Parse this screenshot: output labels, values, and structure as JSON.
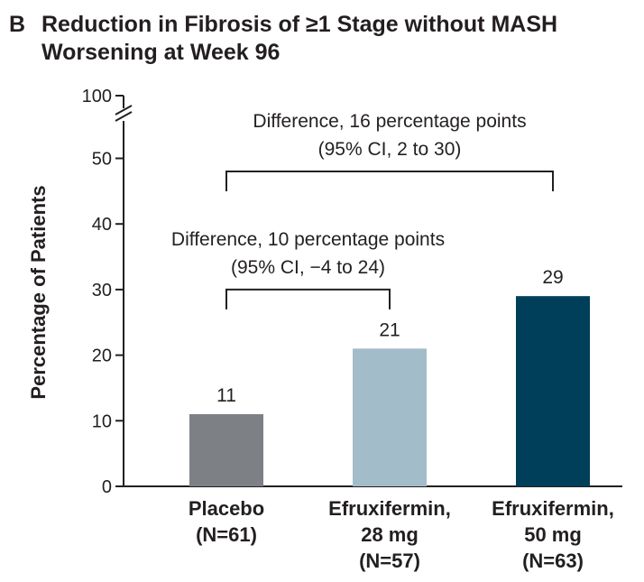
{
  "figure": {
    "panel_letter": "B",
    "title_line1": "Reduction in Fibrosis of ≥1 Stage without MASH",
    "title_line2": "Worsening at Week 96"
  },
  "chart_data": {
    "type": "bar",
    "title": "Reduction in Fibrosis of ≥1 Stage without MASH Worsening at Week 96",
    "ylabel": "Percentage of Patients",
    "ylim": [
      0,
      50
    ],
    "axis_break": true,
    "yticks": [
      0,
      10,
      20,
      30,
      40,
      50
    ],
    "ytick_break_label": 100,
    "grid": false,
    "categories": [
      [
        "Placebo",
        "(N=61)"
      ],
      [
        "Efruxifermin,",
        "28 mg",
        "(N=57)"
      ],
      [
        "Efruxifermin,",
        "50 mg",
        "(N=63)"
      ]
    ],
    "values": [
      11,
      21,
      29
    ],
    "data_labels": [
      "11",
      "21",
      "29"
    ],
    "colors": [
      "#7d8085",
      "#a3bcc9",
      "#003f5a"
    ],
    "annotations": [
      {
        "from": 0,
        "to": 1,
        "bracket_y": 30,
        "lines": [
          "Difference, 10 percentage points",
          "(95% CI, −4 to 24)"
        ]
      },
      {
        "from": 0,
        "to": 2,
        "bracket_y": 48,
        "lines": [
          "Difference, 16 percentage points",
          "(95% CI, 2 to 30)"
        ]
      }
    ]
  }
}
